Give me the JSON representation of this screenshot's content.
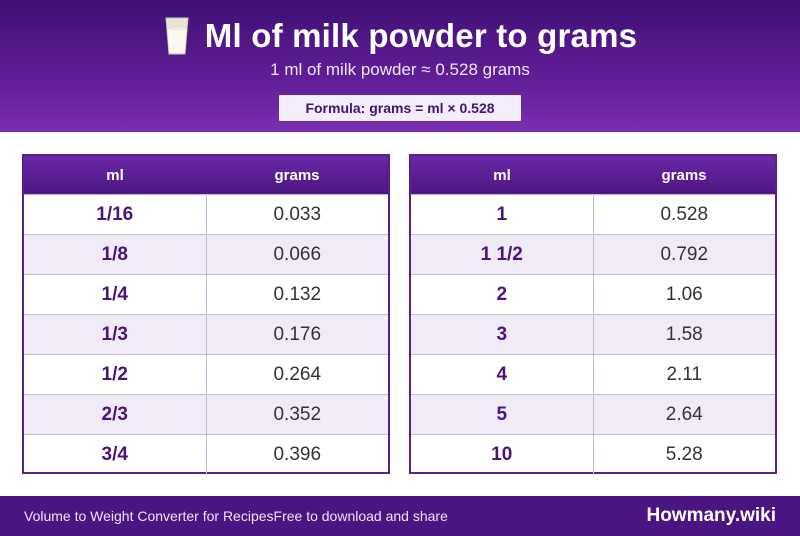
{
  "header": {
    "title_icon": "milk-glass-icon",
    "title": "Ml of milk powder to grams",
    "subtitle": "1 ml of milk powder ≈ 0.528 grams",
    "formula": "Formula: grams = ml × 0.528"
  },
  "tables": [
    {
      "headers": [
        "ml",
        "grams"
      ],
      "rows": [
        [
          "1/16",
          "0.033"
        ],
        [
          "1/8",
          "0.066"
        ],
        [
          "1/4",
          "0.132"
        ],
        [
          "1/3",
          "0.176"
        ],
        [
          "1/2",
          "0.264"
        ],
        [
          "2/3",
          "0.352"
        ],
        [
          "3/4",
          "0.396"
        ]
      ]
    },
    {
      "headers": [
        "ml",
        "grams"
      ],
      "rows": [
        [
          "1",
          "0.528"
        ],
        [
          "1 1/2",
          "0.792"
        ],
        [
          "2",
          "1.06"
        ],
        [
          "3",
          "1.58"
        ],
        [
          "4",
          "2.11"
        ],
        [
          "5",
          "2.64"
        ],
        [
          "10",
          "5.28"
        ]
      ]
    }
  ],
  "footer": {
    "left_text": "Volume to Weight Converter for Recipes",
    "middle_text": "Free to download and share",
    "brand": "Howmany.wiki"
  },
  "colors": {
    "header_purple": "#5e1d94",
    "table_border": "#5b1f8c",
    "row_alt": "#f1ebf7",
    "footer_purple": "#4a1580",
    "ml_text": "#4a1576"
  }
}
